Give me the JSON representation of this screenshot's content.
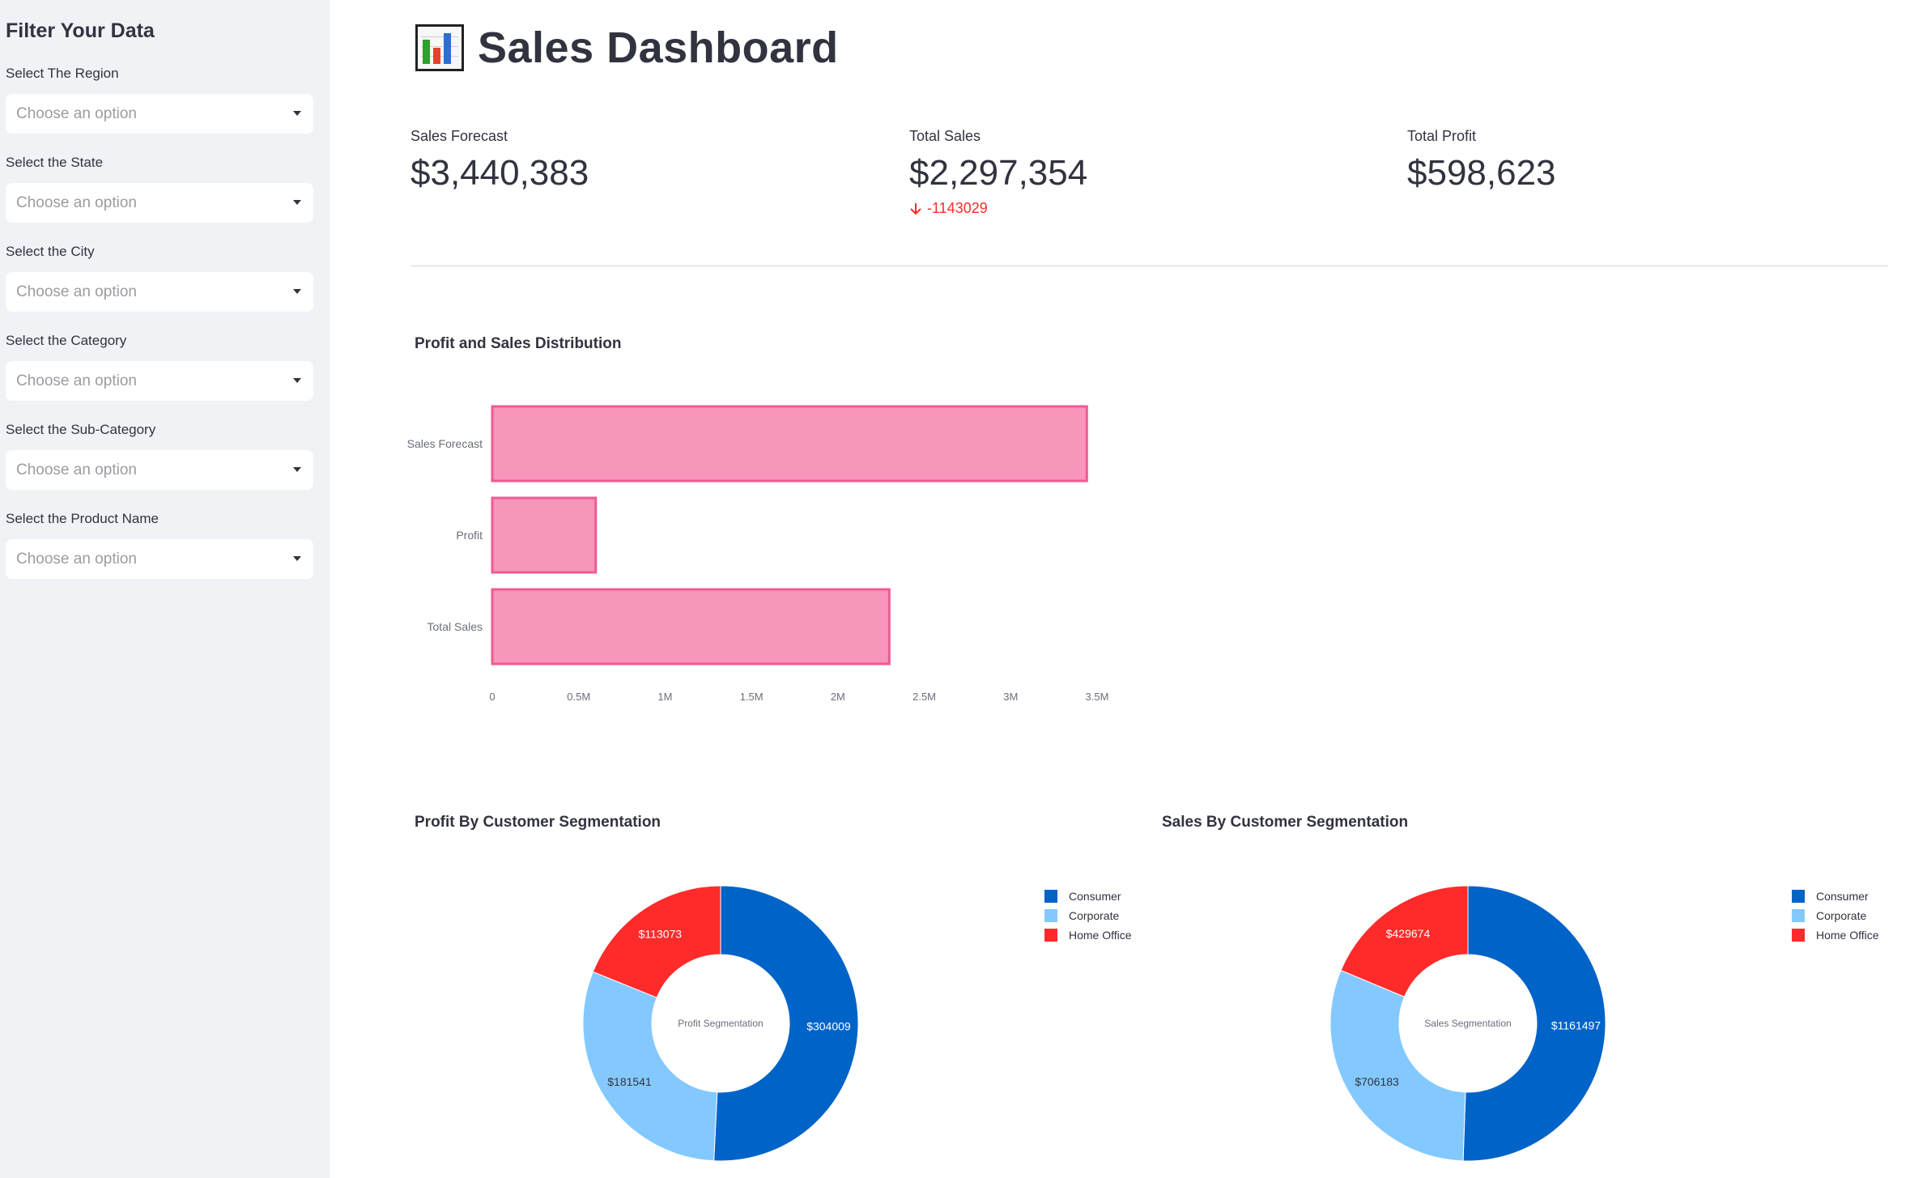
{
  "sidebar": {
    "title": "Filter Your Data",
    "filters": [
      {
        "label": "Select The Region",
        "placeholder": "Choose an option"
      },
      {
        "label": "Select the State",
        "placeholder": "Choose an option"
      },
      {
        "label": "Select the City",
        "placeholder": "Choose an option"
      },
      {
        "label": "Select the Category",
        "placeholder": "Choose an option"
      },
      {
        "label": "Select the Sub-Category",
        "placeholder": "Choose an option"
      },
      {
        "label": "Select the Product Name",
        "placeholder": "Choose an option"
      }
    ]
  },
  "header": {
    "icon": "bar-chart-emoji-icon",
    "title": "Sales Dashboard"
  },
  "metrics": [
    {
      "label": "Sales Forecast",
      "value": "$3,440,383",
      "delta": ""
    },
    {
      "label": "Total Sales",
      "value": "$2,297,354",
      "delta": "-1143029"
    },
    {
      "label": "Total Profit",
      "value": "$598,623",
      "delta": ""
    }
  ],
  "colors": {
    "bar_fill": "#f895bb",
    "bar_stroke": "#ef5a93",
    "consumer": "#0063c8",
    "corporate": "#83c9ff",
    "home_office": "#ff2b2b",
    "delta_negative": "#ff2b2b"
  },
  "chart_data": [
    {
      "type": "bar",
      "orientation": "horizontal",
      "title": "Profit and Sales Distribution",
      "categories": [
        "Sales Forecast",
        "Profit",
        "Total Sales"
      ],
      "values": [
        3440383,
        598623,
        2297354
      ],
      "xlim": [
        0,
        3500000
      ],
      "xticks": [
        "0",
        "0.5M",
        "1M",
        "1.5M",
        "2M",
        "2.5M",
        "3M",
        "3.5M"
      ],
      "xlabel": "",
      "ylabel": ""
    },
    {
      "type": "pie",
      "hole": true,
      "title": "Profit By Customer Segmentation",
      "center_label": "Profit Segmentation",
      "labels": [
        "Consumer",
        "Corporate",
        "Home Office"
      ],
      "values": [
        304009,
        181541,
        113073
      ],
      "value_labels": [
        "$304009",
        "$181541",
        "$113073"
      ],
      "legend": "right"
    },
    {
      "type": "pie",
      "hole": true,
      "title": "Sales By Customer Segmentation",
      "center_label": "Sales Segmentation",
      "labels": [
        "Consumer",
        "Corporate",
        "Home Office"
      ],
      "values": [
        1161497,
        706183,
        429674
      ],
      "value_labels": [
        "$1161497",
        "$706183",
        "$429674"
      ],
      "legend": "right"
    }
  ]
}
